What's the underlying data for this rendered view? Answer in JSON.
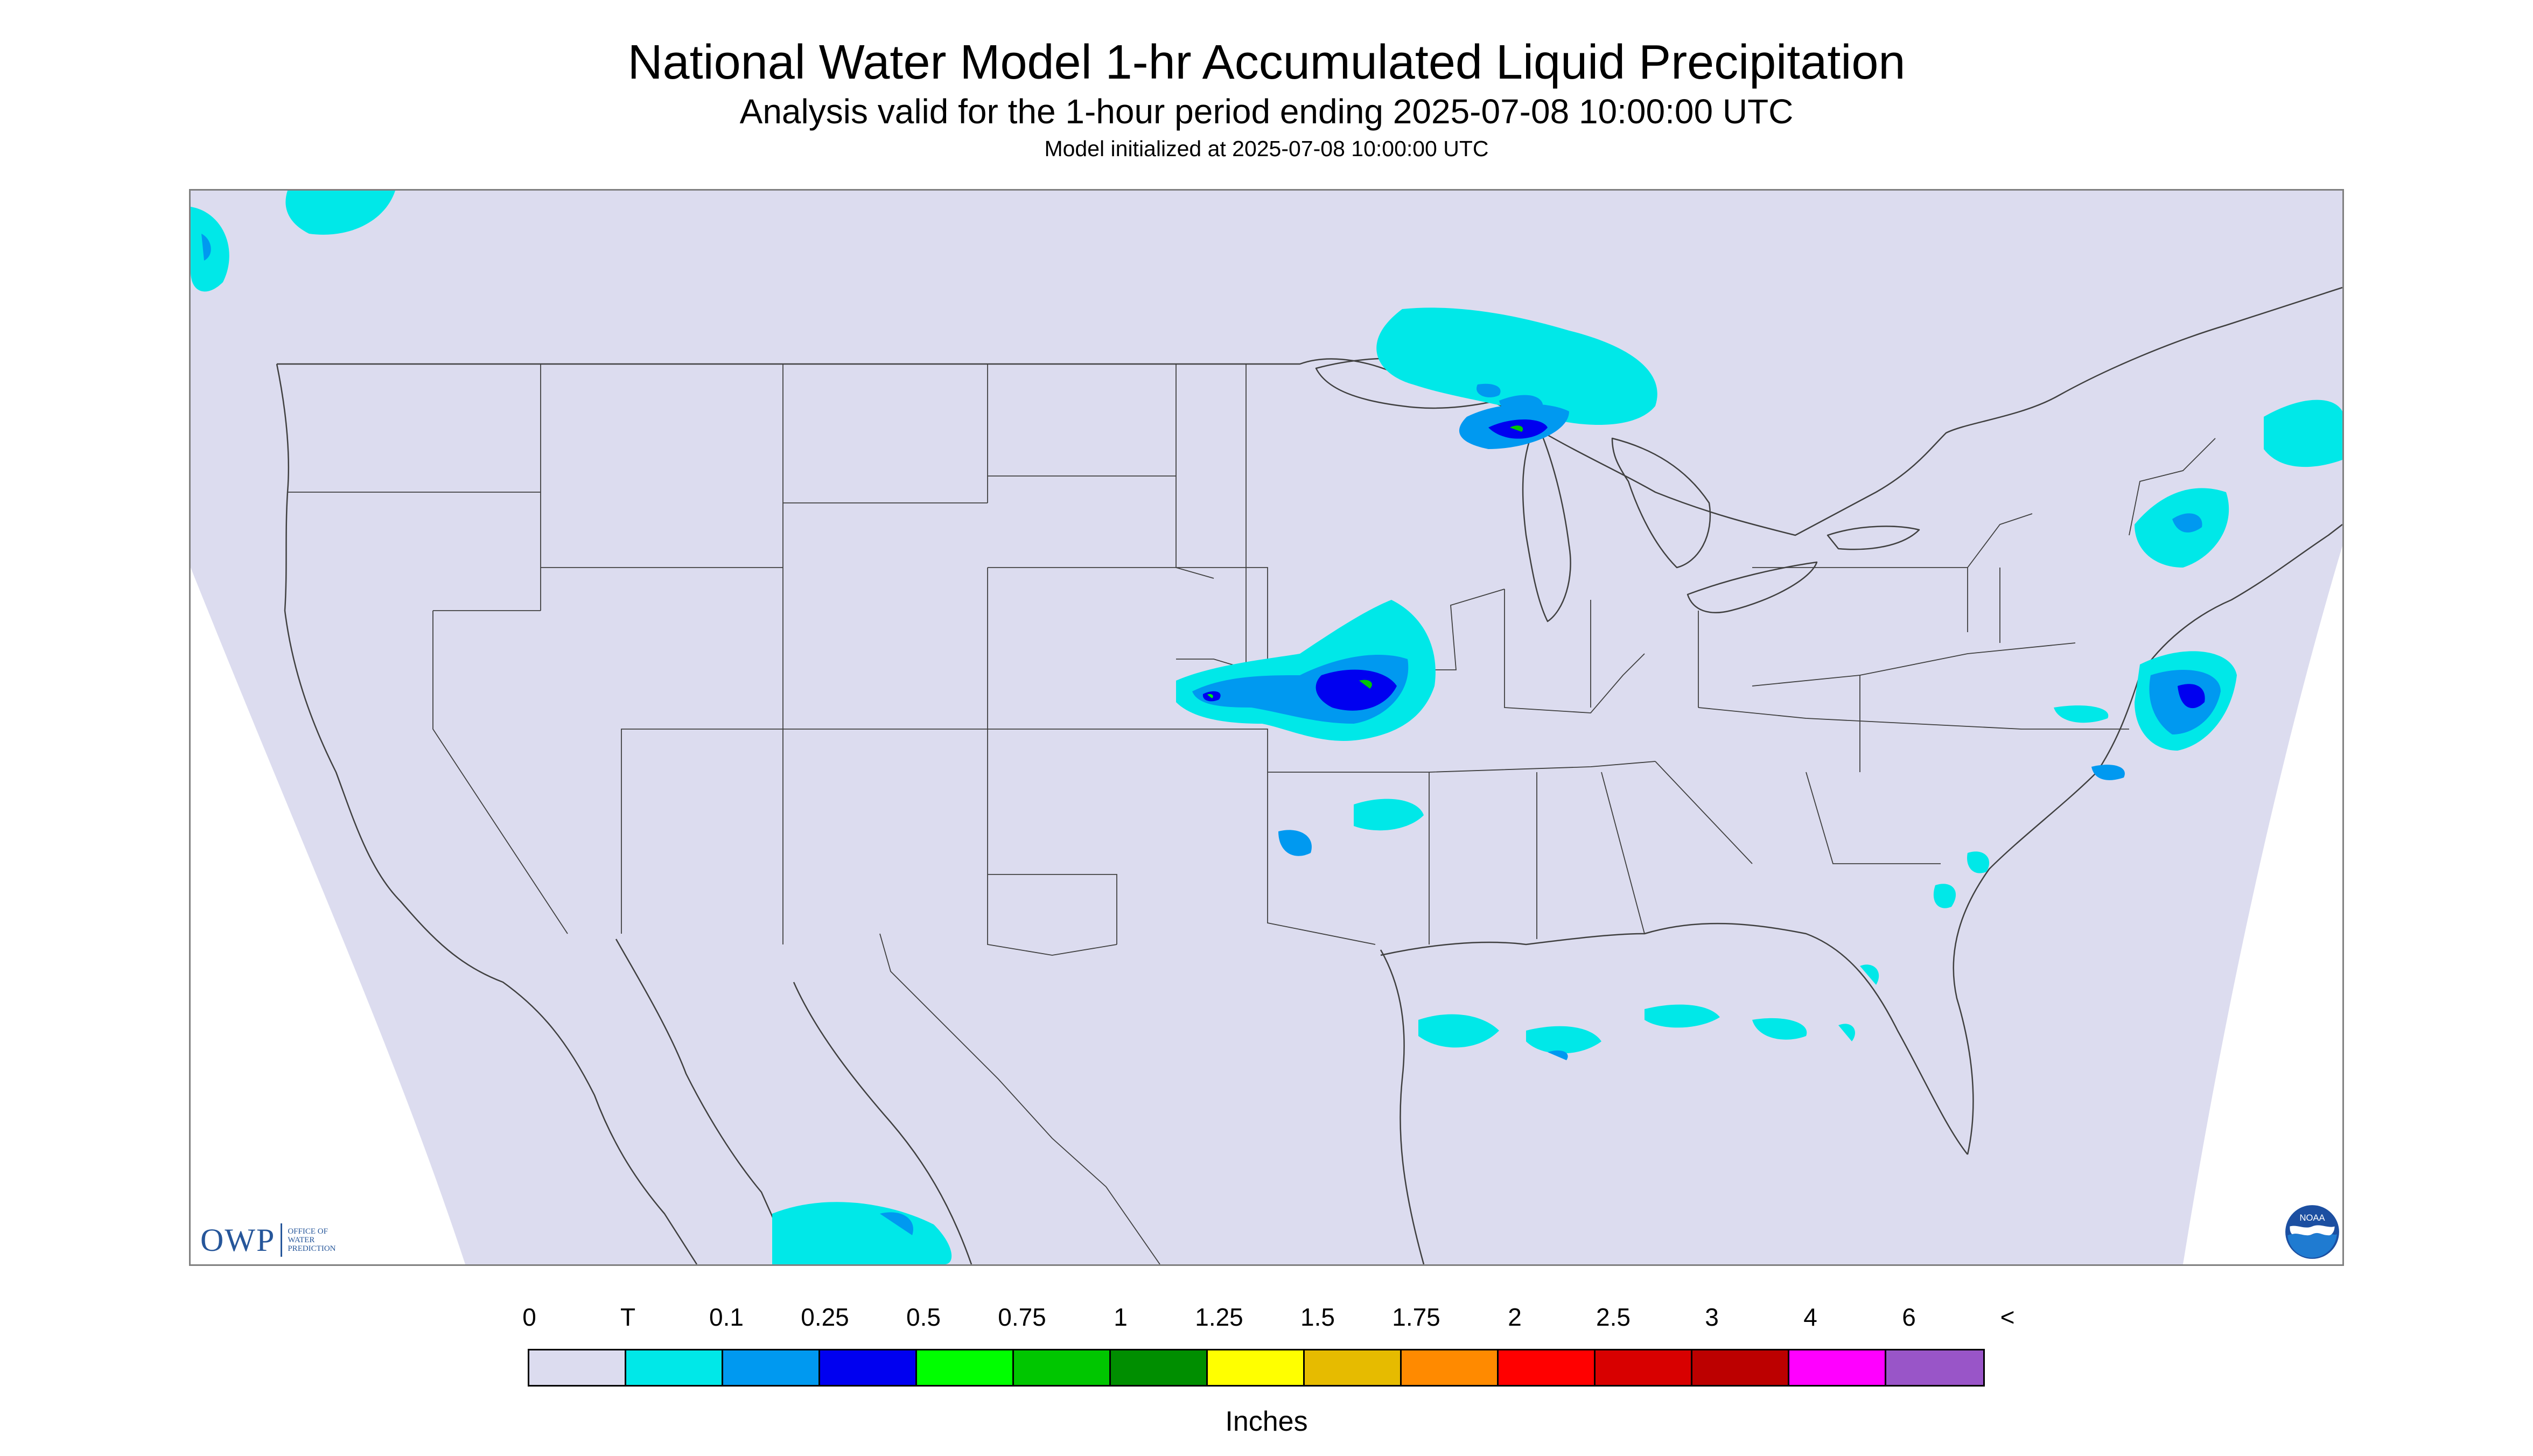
{
  "header": {
    "title": "National Water Model 1-hr Accumulated Liquid Precipitation",
    "subtitle": "Analysis valid for the 1-hour period ending 2025-07-08 10:00:00 UTC",
    "init_line": "Model initialized at 2025-07-08 10:00:00 UTC"
  },
  "logos": {
    "owp_text": "OWP",
    "owp_sub": [
      "OFFICE OF",
      "WATER",
      "PREDICTION"
    ],
    "noaa_text": "NOAA"
  },
  "legend": {
    "tick_labels": [
      "0",
      "T",
      "0.1",
      "0.25",
      "0.5",
      "0.75",
      "1",
      "1.25",
      "1.5",
      "1.75",
      "2",
      "2.5",
      "3",
      "4",
      "6",
      "<"
    ],
    "colors": [
      "#dcdcef",
      "#00e8e8",
      "#0099f0",
      "#0000f0",
      "#00ff00",
      "#00c600",
      "#008e00",
      "#ffff00",
      "#e6bb00",
      "#ff8a00",
      "#ff0000",
      "#d80000",
      "#bc0000",
      "#ff00ff",
      "#9955c8"
    ],
    "units": "Inches"
  },
  "map": {
    "background": "#dcdcef",
    "outside": "#ffffff",
    "border_color": "#404040",
    "precip_regions": [
      {
        "name": "Northern Minnesota / Lake Superior",
        "level": "0.25-0.5"
      },
      {
        "name": "Upper Michigan",
        "level": "0.5-0.75"
      },
      {
        "name": "Iowa / Missouri / Kansas",
        "level": "0.5-1"
      },
      {
        "name": "Southern New England coast",
        "level": "0.25-0.75"
      },
      {
        "name": "Gulf Coast",
        "level": "T-0.25"
      },
      {
        "name": "Southeast Atlantic offshore",
        "level": "T-0.25"
      },
      {
        "name": "Pacific Northwest",
        "level": "T-0.1"
      },
      {
        "name": "Southern Mexico",
        "level": "T-0.1"
      }
    ]
  }
}
